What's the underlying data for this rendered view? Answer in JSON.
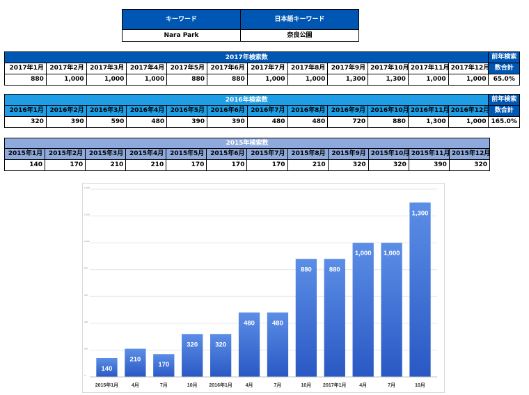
{
  "keyword_table": {
    "header_keyword": "キーワード",
    "header_jp_keyword": "日本語キーワード",
    "keyword": "Nara Park",
    "jp_keyword": "奈良公園"
  },
  "table_2017": {
    "title": "2017年検索数",
    "side_header_1": "前年検索",
    "side_header_2": "数合計",
    "months": [
      "2017年1月",
      "2017年2月",
      "2017年3月",
      "2017年4月",
      "2017年5月",
      "2017年6月",
      "2017年7月",
      "2017年8月",
      "2017年9月",
      "2017年10月",
      "2017年11月",
      "2017年12月"
    ],
    "values": [
      "880",
      "1,000",
      "1,000",
      "1,000",
      "880",
      "880",
      "1,000",
      "1,000",
      "1,300",
      "1,300",
      "1,000",
      "1,000"
    ],
    "ratio": "65.0%"
  },
  "table_2016": {
    "title": "2016年検索数",
    "side_header_1": "前年検索",
    "side_header_2": "数合計",
    "months": [
      "2016年1月",
      "2016年2月",
      "2016年3月",
      "2016年4月",
      "2016年5月",
      "2016年6月",
      "2016年7月",
      "2016年8月",
      "2016年9月",
      "2016年10月",
      "2016年11月",
      "2016年12月"
    ],
    "values": [
      "320",
      "390",
      "590",
      "480",
      "390",
      "390",
      "480",
      "480",
      "720",
      "880",
      "1,300",
      "1,000"
    ],
    "ratio": "165.0%"
  },
  "table_2015": {
    "title": "2015年検索数",
    "months": [
      "2015年1月",
      "2015年2月",
      "2015年3月",
      "2015年4月",
      "2015年5月",
      "2015年6月",
      "2015年7月",
      "2015年8月",
      "2015年9月",
      "2015年10月",
      "2015年11月",
      "2015年12月"
    ],
    "values": [
      "140",
      "170",
      "210",
      "210",
      "170",
      "170",
      "170",
      "210",
      "320",
      "320",
      "390",
      "320"
    ]
  },
  "colors": {
    "dark_blue": "#0057b3",
    "mid_blue": "#1f9ee6",
    "light_blue": "#8ea9db",
    "bar_top": "#5b8ee6",
    "bar_bottom": "#2a58c4"
  },
  "chart_data": {
    "type": "bar",
    "categories": [
      "2015年1月",
      "4月",
      "7月",
      "10月",
      "2016年1月",
      "4月",
      "7月",
      "10月",
      "2017年1月",
      "4月",
      "7月",
      "10月"
    ],
    "values": [
      140,
      210,
      170,
      320,
      320,
      480,
      480,
      880,
      880,
      1000,
      1000,
      1300
    ],
    "data_labels": [
      "140",
      "210",
      "170",
      "320",
      "320",
      "480",
      "480",
      "880",
      "880",
      "1,000",
      "1,000",
      "1,300"
    ],
    "y_ticks": [
      "0",
      "200",
      "400",
      "600",
      "800",
      "1,000",
      "1,200",
      "1,400"
    ],
    "ylim": [
      0,
      1400
    ],
    "grid": true,
    "legend": false
  }
}
